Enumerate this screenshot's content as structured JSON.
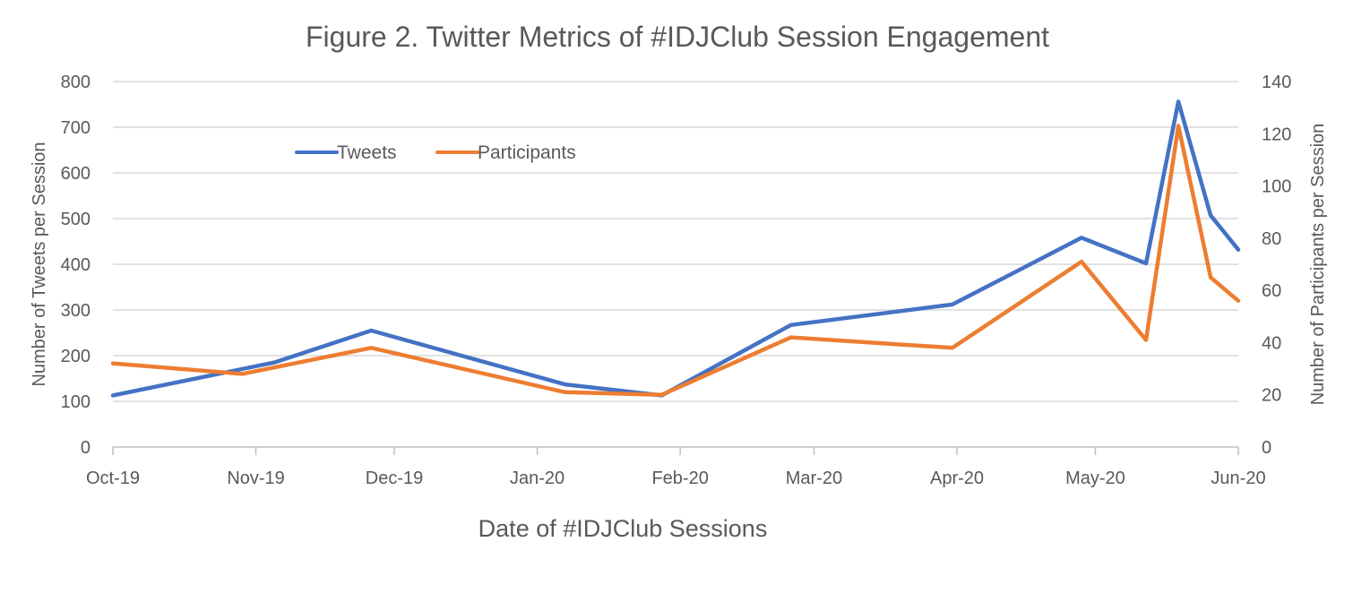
{
  "chart_data": {
    "type": "line",
    "title": "Figure 2. Twitter Metrics of #IDJClub Session Engagement",
    "xlabel": "Date of #IDJClub Sessions",
    "ylabel": "Number of Tweets per Session",
    "y2label": "Number of Participants per Session",
    "x_ticks": [
      "Oct-19",
      "Nov-19",
      "Dec-19",
      "Jan-20",
      "Feb-20",
      "Mar-20",
      "Apr-20",
      "May-20",
      "Jun-20"
    ],
    "x_range": [
      "2019-10-01",
      "2020-06-01"
    ],
    "ylim": [
      0,
      800
    ],
    "y_ticks": [
      0,
      100,
      200,
      300,
      400,
      500,
      600,
      700,
      800
    ],
    "y2lim": [
      0,
      140
    ],
    "y2_ticks": [
      0,
      20,
      40,
      60,
      80,
      100,
      120,
      140
    ],
    "grid": true,
    "legend_position": "top-left",
    "series": [
      {
        "name": "Tweets",
        "axis": "left",
        "color": "#4472c4",
        "points": [
          {
            "x": "2019-10-01",
            "y": 113
          },
          {
            "x": "2019-11-05",
            "y": 185
          },
          {
            "x": "2019-11-26",
            "y": 255
          },
          {
            "x": "2020-01-07",
            "y": 137
          },
          {
            "x": "2020-01-28",
            "y": 113
          },
          {
            "x": "2020-02-25",
            "y": 267
          },
          {
            "x": "2020-03-31",
            "y": 312
          },
          {
            "x": "2020-04-28",
            "y": 458
          },
          {
            "x": "2020-05-12",
            "y": 402
          },
          {
            "x": "2020-05-19",
            "y": 756
          },
          {
            "x": "2020-05-26",
            "y": 507
          },
          {
            "x": "2020-06-01",
            "y": 432
          }
        ]
      },
      {
        "name": "Participants",
        "axis": "right",
        "color": "#ed7d31",
        "points": [
          {
            "x": "2019-10-01",
            "y": 32
          },
          {
            "x": "2019-10-29",
            "y": 28
          },
          {
            "x": "2019-11-26",
            "y": 38
          },
          {
            "x": "2020-01-07",
            "y": 21
          },
          {
            "x": "2020-01-28",
            "y": 20
          },
          {
            "x": "2020-02-25",
            "y": 42
          },
          {
            "x": "2020-03-31",
            "y": 38
          },
          {
            "x": "2020-04-28",
            "y": 71
          },
          {
            "x": "2020-05-12",
            "y": 41
          },
          {
            "x": "2020-05-19",
            "y": 123
          },
          {
            "x": "2020-05-26",
            "y": 65
          },
          {
            "x": "2020-06-01",
            "y": 56
          }
        ]
      }
    ]
  }
}
